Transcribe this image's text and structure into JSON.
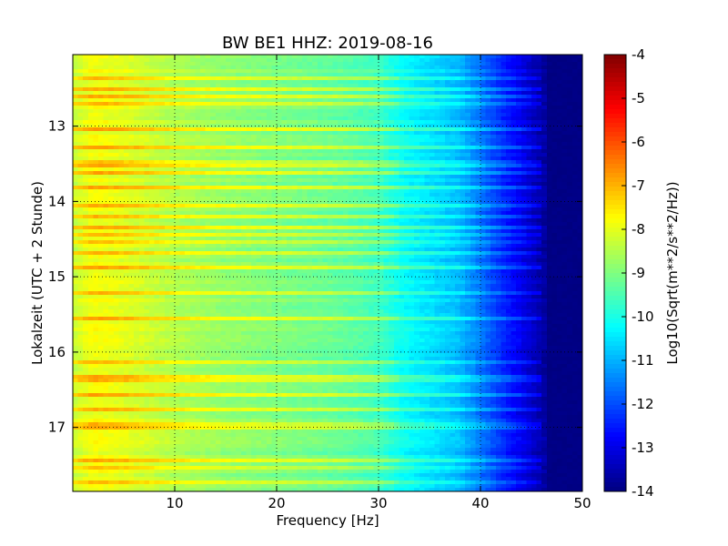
{
  "chart_data": {
    "type": "heatmap",
    "title": "BW BE1 HHZ: 2019-08-16",
    "xlabel": "Frequency [Hz]",
    "ylabel": "Lokalzeit (UTC + 2 Stunde)",
    "xlim": [
      0,
      50
    ],
    "ylim": [
      12.05,
      17.85
    ],
    "y_inverted": true,
    "x_ticks": [
      "10",
      "20",
      "30",
      "40",
      "50"
    ],
    "x_tick_values": [
      10,
      20,
      30,
      40,
      50
    ],
    "y_ticks": [
      "13",
      "14",
      "15",
      "16",
      "17"
    ],
    "y_tick_values": [
      13,
      14,
      15,
      16,
      17
    ],
    "grid": true,
    "colorbar": {
      "label": "Log10(Sqrt(m**2/s**2/Hz))",
      "range": [
        -14,
        -4
      ],
      "ticks": [
        "-4",
        "-5",
        "-6",
        "-7",
        "-8",
        "-9",
        "-10",
        "-11",
        "-12",
        "-13",
        "-14"
      ],
      "tick_values": [
        -4,
        -5,
        -6,
        -7,
        -8,
        -9,
        -10,
        -11,
        -12,
        -13,
        -14
      ],
      "colormap": "jet"
    },
    "spectral_profile": {
      "description": "Approximate background level vs frequency",
      "frequency_hz": [
        0,
        2,
        5,
        8,
        10,
        15,
        20,
        25,
        28,
        30,
        32,
        35,
        38,
        40,
        42,
        44,
        46,
        48,
        50
      ],
      "log10_amplitude": [
        -8.3,
        -7.8,
        -8.0,
        -8.3,
        -8.5,
        -8.8,
        -9.0,
        -9.2,
        -9.4,
        -9.6,
        -10.1,
        -10.5,
        -10.9,
        -11.6,
        -12.3,
        -12.9,
        -13.6,
        -13.9,
        -14.0
      ]
    },
    "bright_bands_hours": [
      12.35,
      12.5,
      12.6,
      12.72,
      13.05,
      13.3,
      13.5,
      13.62,
      13.8,
      14.05,
      14.2,
      14.35,
      14.45,
      14.55,
      14.7,
      14.88,
      15.2,
      15.55,
      16.15,
      16.35,
      16.55,
      16.75,
      16.98,
      17.45,
      17.55,
      17.75
    ]
  }
}
